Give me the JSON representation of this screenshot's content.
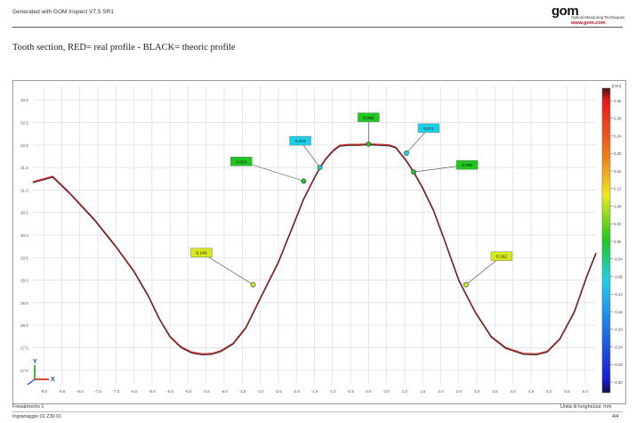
{
  "header": {
    "generator": "Generated with GOM Inspect V7.5 SR1",
    "logo_text": "gom",
    "logo_subtitle": "Optical Measuring Techniques",
    "logo_url": "www.gom.com"
  },
  "title": "Tooth section, RED= real profile - BLACK= theoric profile",
  "footer": {
    "left_top": "Fresatmento 1",
    "left_bottom": "Ingranaggio  01   Z30    01",
    "right_top": "Unità di lunghezza: mm",
    "page": "4/4"
  },
  "colorbar": {
    "unit": "[mm]",
    "ticks": [
      "0.30",
      "0.28",
      "0.24",
      "0.20",
      "0.16",
      "0.12",
      "0.08",
      "0.04",
      "0.00",
      "-0.04",
      "-0.08",
      "-0.12",
      "-0.16",
      "-0.20",
      "-0.24",
      "-0.28",
      "-0.30"
    ]
  },
  "colors": {
    "real_profile": "#c8282a",
    "theoric_profile": "#222222"
  },
  "chart_data": {
    "type": "line",
    "title": "Tooth section, RED= real profile - BLACK= theoric profile",
    "xlabel": "",
    "ylabel": "",
    "x_ticks": [
      "-9.0",
      "-8.5",
      "-8.0",
      "-7.5",
      "-7.0",
      "-6.5",
      "-6.0",
      "-5.5",
      "-5.0",
      "-4.5",
      "-4.0",
      "-3.5",
      "-3.0",
      "-2.5",
      "-2.0",
      "-1.5",
      "-1.0",
      "-0.5",
      "0.0",
      "0.5",
      "1.0",
      "1.5",
      "2.0",
      "2.5",
      "3.0",
      "3.5",
      "4.0",
      "4.5",
      "5.0",
      "5.5",
      "6.0"
    ],
    "y_ticks": [
      "33.0",
      "32.5",
      "32.0",
      "31.5",
      "31.0",
      "30.5",
      "30.0",
      "29.5",
      "29.0",
      "28.5",
      "28.0",
      "27.5",
      "27.0"
    ],
    "xlim": [
      -9.3,
      6.3
    ],
    "ylim": [
      26.7,
      33.3
    ],
    "grid": true,
    "series": [
      {
        "name": "RED= real profile",
        "x": [
          -9.3,
          -8.75,
          -8.3,
          -7.6,
          -7.0,
          -6.5,
          -6.1,
          -5.8,
          -5.5,
          -5.2,
          -4.9,
          -4.6,
          -4.35,
          -4.1,
          -3.75,
          -3.4,
          -3.0,
          -2.5,
          -2.1,
          -1.8,
          -1.55,
          -1.35,
          -1.2,
          -1.05,
          -0.95,
          -0.8,
          -0.55,
          -0.3,
          0.0,
          0.3,
          0.55,
          0.75,
          0.9,
          1.05,
          1.25,
          1.5,
          1.8,
          2.1,
          2.5,
          2.95,
          3.4,
          3.8,
          4.3,
          4.65,
          4.95,
          5.3,
          5.7,
          6.05,
          6.3
        ],
        "y": [
          31.18,
          31.3,
          30.95,
          30.35,
          29.75,
          29.2,
          28.65,
          28.15,
          27.75,
          27.52,
          27.4,
          27.36,
          27.37,
          27.43,
          27.6,
          27.95,
          28.6,
          29.4,
          30.2,
          30.8,
          31.2,
          31.5,
          31.68,
          31.82,
          31.9,
          31.99,
          32.01,
          32.01,
          32.02,
          32.01,
          32.0,
          31.95,
          31.8,
          31.65,
          31.4,
          31.05,
          30.55,
          29.9,
          29.0,
          28.3,
          27.75,
          27.5,
          27.37,
          27.36,
          27.42,
          27.7,
          28.3,
          29.1,
          29.6
        ]
      },
      {
        "name": "BLACK= theoric profile",
        "x": [
          -9.3,
          -8.75,
          -8.3,
          -7.6,
          -7.0,
          -6.5,
          -6.1,
          -5.8,
          -5.5,
          -5.2,
          -4.9,
          -4.6,
          -4.35,
          -4.1,
          -3.75,
          -3.4,
          -3.0,
          -2.5,
          -2.1,
          -1.8,
          -1.55,
          -1.35,
          -1.2,
          -1.05,
          -0.95,
          -0.8,
          -0.55,
          -0.3,
          0.0,
          0.3,
          0.55,
          0.75,
          0.9,
          1.05,
          1.25,
          1.5,
          1.8,
          2.1,
          2.5,
          2.95,
          3.4,
          3.8,
          4.3,
          4.65,
          4.95,
          5.3,
          5.7,
          6.05,
          6.3
        ],
        "y": [
          31.16,
          31.28,
          30.93,
          30.33,
          29.73,
          29.18,
          28.63,
          28.13,
          27.73,
          27.5,
          27.38,
          27.34,
          27.35,
          27.41,
          27.58,
          27.93,
          28.58,
          29.38,
          30.18,
          30.78,
          31.18,
          31.48,
          31.66,
          31.8,
          31.88,
          31.97,
          31.99,
          31.99,
          32.0,
          31.99,
          31.98,
          31.93,
          31.78,
          31.63,
          31.38,
          31.03,
          30.53,
          29.88,
          28.98,
          28.28,
          27.73,
          27.48,
          27.35,
          27.34,
          27.4,
          27.68,
          28.28,
          29.08,
          29.58
        ]
      }
    ],
    "deviation_labels": [
      {
        "text": "0.003",
        "color": "#1ec81e",
        "x": -1.8,
        "y": 31.2
      },
      {
        "text": "0.073",
        "color": "#1ecfe8",
        "x": -1.35,
        "y": 31.5
      },
      {
        "text": "0.000",
        "color": "#1ec81e",
        "x": 0.0,
        "y": 32.02
      },
      {
        "text": "0.071",
        "color": "#1ecfe8",
        "x": 1.05,
        "y": 31.82
      },
      {
        "text": "0.005",
        "color": "#1ec81e",
        "x": 1.25,
        "y": 31.4
      },
      {
        "text": "0.149",
        "color": "#d8e81e",
        "x": -3.2,
        "y": 28.9
      },
      {
        "text": "0.162",
        "color": "#d8e81e",
        "x": 2.7,
        "y": 28.9
      }
    ],
    "axis_triad": {
      "x_label": "X",
      "y_label": "Y"
    }
  }
}
